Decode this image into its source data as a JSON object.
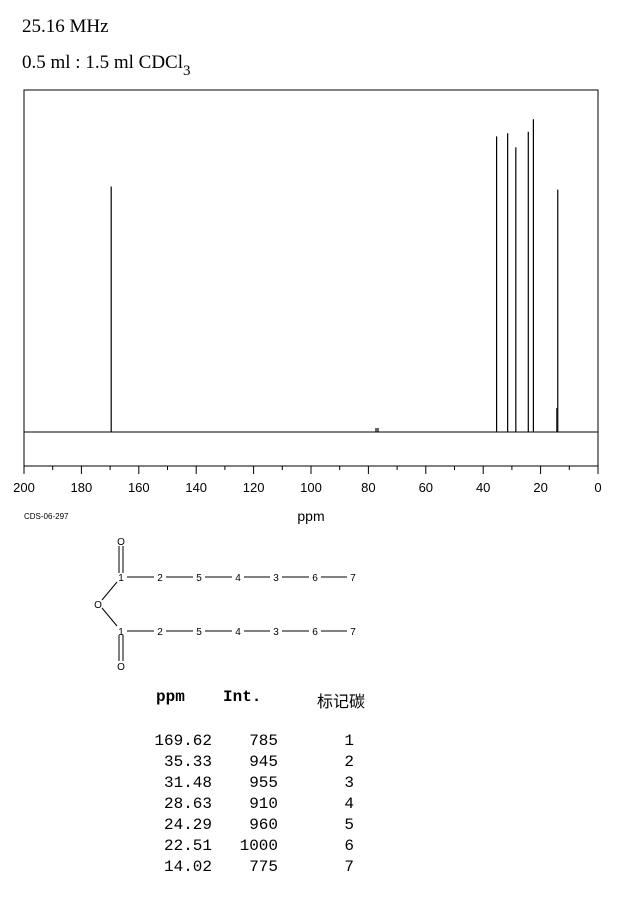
{
  "header": {
    "frequency": "25.16 MHz",
    "solvent_prefix": "0.5 ml : 1.5 ml CDCl",
    "solvent_sub": "3"
  },
  "chart_data": {
    "type": "line",
    "title": "",
    "xlabel": "ppm",
    "ylabel": "",
    "xlim": [
      200,
      0
    ],
    "x_reversed": true,
    "x_ticks": [
      "200",
      "180",
      "160",
      "140",
      "120",
      "100",
      "80",
      "60",
      "40",
      "20",
      "0"
    ],
    "ylim": [
      0,
      1000
    ],
    "series": [
      {
        "peaks_ppm": [
          169.62,
          35.33,
          31.48,
          28.63,
          24.29,
          22.51,
          14.02
        ],
        "intensities": [
          785,
          945,
          955,
          910,
          960,
          1000,
          775
        ]
      }
    ],
    "solvent_peak_ppm": 77.0,
    "grid": false
  },
  "code": "CDS-06-297",
  "structure": {
    "upper_chain": [
      "1",
      "2",
      "5",
      "4",
      "3",
      "6",
      "7"
    ],
    "lower_chain": [
      "1",
      "2",
      "5",
      "4",
      "3",
      "6",
      "7"
    ],
    "oxo_top": "O",
    "oxo_bottom": "O",
    "bridge_o": "O"
  },
  "table": {
    "headers": {
      "ppm": "ppm",
      "int": "Int.",
      "assign": "标记碳"
    },
    "rows": [
      {
        "ppm": "169.62",
        "int": "785",
        "assign": "1"
      },
      {
        "ppm": "35.33",
        "int": "945",
        "assign": "2"
      },
      {
        "ppm": "31.48",
        "int": "955",
        "assign": "3"
      },
      {
        "ppm": "28.63",
        "int": "910",
        "assign": "4"
      },
      {
        "ppm": "24.29",
        "int": "960",
        "assign": "5"
      },
      {
        "ppm": "22.51",
        "int": "1000",
        "assign": "6"
      },
      {
        "ppm": "14.02",
        "int": "775",
        "assign": "7"
      }
    ]
  }
}
